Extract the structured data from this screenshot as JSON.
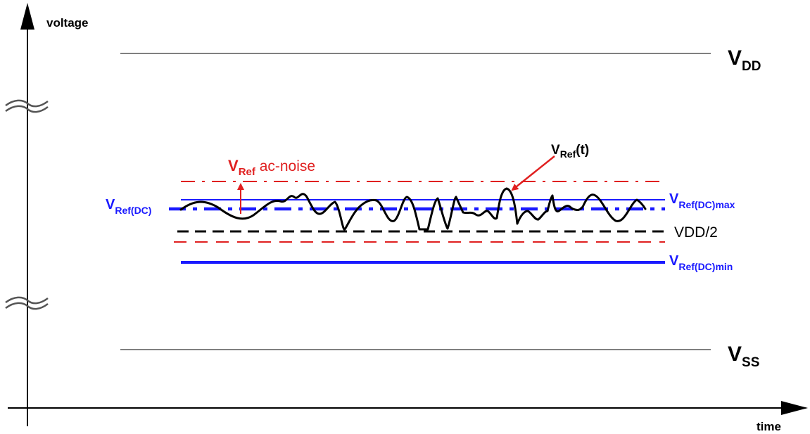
{
  "axes": {
    "y_label": "voltage",
    "x_label": "time"
  },
  "rails": {
    "vdd": {
      "main": "V",
      "sub": "DD"
    },
    "vss": {
      "main": "V",
      "sub": "SS"
    }
  },
  "reference_levels": {
    "vref_dc": {
      "main": "V",
      "sub": "Ref(DC)"
    },
    "vref_dc_max": {
      "main": "V",
      "sub": "Ref(DC)max"
    },
    "vref_dc_min": {
      "main": "V",
      "sub": "Ref(DC)min"
    },
    "vdd_half": "VDD/2"
  },
  "annotations": {
    "ac_noise": {
      "main": "V",
      "sub": "Ref",
      "text": " ac-noise"
    },
    "vref_t": {
      "main": "V",
      "sub": "Ref",
      "suffix": "(t)"
    }
  },
  "colors": {
    "blue": "#1a1aff",
    "red": "#e02020",
    "black": "#000000",
    "break_gray": "#555555"
  }
}
